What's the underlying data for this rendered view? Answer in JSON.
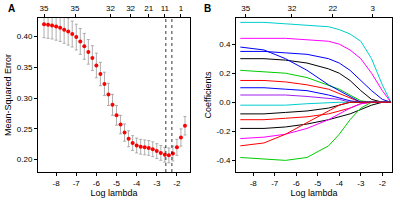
{
  "chart_data": [
    {
      "type": "scatter",
      "title": "A",
      "x_label": "Log lambda",
      "y_label": "Mean-Squared Error",
      "x": [
        -8.6,
        -8.4,
        -8.2,
        -8.0,
        -7.8,
        -7.6,
        -7.4,
        -7.2,
        -7.0,
        -6.8,
        -6.6,
        -6.4,
        -6.2,
        -6.0,
        -5.8,
        -5.6,
        -5.4,
        -5.2,
        -5.0,
        -4.8,
        -4.6,
        -4.4,
        -4.2,
        -4.0,
        -3.8,
        -3.6,
        -3.4,
        -3.2,
        -3.0,
        -2.8,
        -2.6,
        -2.4,
        -2.2,
        -2.0,
        -1.8,
        -1.6
      ],
      "values": [
        0.42,
        0.419,
        0.418,
        0.416,
        0.414,
        0.411,
        0.408,
        0.404,
        0.399,
        0.392,
        0.384,
        0.375,
        0.365,
        0.353,
        0.339,
        0.323,
        0.306,
        0.289,
        0.272,
        0.257,
        0.244,
        0.234,
        0.227,
        0.223,
        0.221,
        0.22,
        0.219,
        0.217,
        0.214,
        0.211,
        0.208,
        0.207,
        0.21,
        0.22,
        0.236,
        0.255
      ],
      "error": [
        0.022,
        0.022,
        0.022,
        0.022,
        0.022,
        0.022,
        0.022,
        0.021,
        0.021,
        0.021,
        0.021,
        0.02,
        0.02,
        0.02,
        0.019,
        0.019,
        0.018,
        0.017,
        0.016,
        0.015,
        0.014,
        0.013,
        0.012,
        0.012,
        0.012,
        0.012,
        0.012,
        0.012,
        0.012,
        0.012,
        0.012,
        0.012,
        0.012,
        0.013,
        0.014,
        0.015
      ],
      "color": "#ff0000",
      "marker": "circle",
      "xlim": [
        -8.9,
        -1.35
      ],
      "xticks": [
        -8,
        -7,
        -6,
        -5,
        -4,
        -3,
        -2
      ],
      "x2ticks": [
        {
          "value": -8.6,
          "label": "35"
        },
        {
          "value": -7.06,
          "label": "35"
        },
        {
          "value": -5.3,
          "label": "32"
        },
        {
          "value": -4.3,
          "label": "32"
        },
        {
          "value": -3.4,
          "label": "21"
        },
        {
          "value": -2.6,
          "label": "11"
        },
        {
          "value": -1.8,
          "label": "1"
        }
      ],
      "ylim": [
        0.18,
        0.43
      ],
      "yticks": [
        {
          "value": 0.2,
          "label": "0.20"
        },
        0.25,
        {
          "value": 0.3,
          "label": "0.30"
        },
        0.35,
        {
          "value": 0.4,
          "label": "0.40"
        }
      ],
      "reference_lines": [
        -2.55,
        -2.25
      ],
      "line_style": "dot"
    },
    {
      "type": "line",
      "title": "B",
      "x_label": "Log lambda",
      "y_label": "Coefficients",
      "x": [
        -8.6,
        -7.5,
        -6.5,
        -5.5,
        -4.5,
        -4.0,
        -3.5,
        -3.0,
        -2.5,
        -2.0,
        -1.6
      ],
      "series": [
        {
          "color": "#00cdcd",
          "values": [
            0.55,
            0.55,
            0.54,
            0.53,
            0.52,
            0.5,
            0.47,
            0.42,
            0.3,
            0.12,
            0.0
          ]
        },
        {
          "color": "#ff00ff",
          "values": [
            0.44,
            0.44,
            0.44,
            0.43,
            0.42,
            0.4,
            0.36,
            0.3,
            0.2,
            0.08,
            0.0
          ]
        },
        {
          "color": "#0000ff",
          "values": [
            0.35,
            0.35,
            0.34,
            0.33,
            0.3,
            0.27,
            0.22,
            0.15,
            0.08,
            0.02,
            0.0
          ]
        },
        {
          "color": "#000000",
          "values": [
            0.3,
            0.3,
            0.29,
            0.27,
            0.23,
            0.2,
            0.15,
            0.08,
            0.02,
            0.0,
            0.0
          ]
        },
        {
          "color": "#00cd00",
          "values": [
            0.22,
            0.21,
            0.2,
            0.17,
            0.12,
            0.09,
            0.05,
            0.01,
            0.0,
            0.0,
            0.0
          ]
        },
        {
          "color": "#ff0000",
          "values": [
            0.15,
            0.15,
            0.14,
            0.12,
            0.09,
            0.06,
            0.03,
            0.0,
            0.0,
            0.0,
            0.0
          ]
        },
        {
          "color": "#0000ff",
          "values": [
            0.1,
            0.1,
            0.09,
            0.08,
            0.05,
            0.03,
            0.01,
            0.0,
            0.0,
            0.0,
            0.0
          ]
        },
        {
          "color": "#a020f0",
          "values": [
            0.05,
            0.05,
            0.05,
            0.04,
            0.03,
            0.02,
            0.0,
            0.0,
            0.0,
            0.0,
            0.0
          ]
        },
        {
          "color": "#00cdcd",
          "values": [
            -0.02,
            -0.02,
            -0.02,
            -0.01,
            0.0,
            0.0,
            0.0,
            0.0,
            0.0,
            0.0,
            0.0
          ]
        },
        {
          "color": "#000000",
          "values": [
            -0.08,
            -0.08,
            -0.07,
            -0.06,
            -0.04,
            -0.02,
            0.0,
            0.0,
            0.0,
            0.0,
            0.0
          ]
        },
        {
          "color": "#ff0000",
          "values": [
            -0.12,
            -0.12,
            -0.11,
            -0.1,
            -0.08,
            -0.06,
            -0.04,
            -0.01,
            0.0,
            0.0,
            0.0
          ]
        },
        {
          "color": "#000000",
          "values": [
            -0.18,
            -0.18,
            -0.17,
            -0.15,
            -0.12,
            -0.1,
            -0.08,
            -0.05,
            -0.02,
            0.0,
            0.0
          ]
        },
        {
          "color": "#ff00ff",
          "values": [
            -0.25,
            -0.24,
            -0.22,
            -0.18,
            -0.12,
            -0.08,
            -0.04,
            -0.01,
            0.0,
            0.0,
            0.0
          ]
        },
        {
          "color": "#00cd00",
          "values": [
            -0.38,
            -0.39,
            -0.4,
            -0.38,
            -0.3,
            -0.22,
            -0.12,
            -0.04,
            0.0,
            0.0,
            0.0
          ]
        },
        {
          "color": "#0000ff",
          "values": [
            0.38,
            0.36,
            0.3,
            0.22,
            0.12,
            0.08,
            0.04,
            0.0,
            0.0,
            0.0,
            0.0
          ]
        },
        {
          "color": "#ff0000",
          "values": [
            -0.3,
            -0.28,
            -0.22,
            -0.14,
            -0.06,
            -0.02,
            0.0,
            0.0,
            0.0,
            0.0,
            0.0
          ]
        }
      ],
      "xlim": [
        -8.8,
        -1.55
      ],
      "xticks": [
        -8,
        -7,
        -6,
        -5,
        -4,
        -3,
        -2
      ],
      "x2ticks": [
        {
          "value": -8.35,
          "label": "35"
        },
        {
          "value": -6.2,
          "label": "32"
        },
        {
          "value": -4.3,
          "label": "22"
        },
        {
          "value": -2.45,
          "label": "3"
        }
      ],
      "ylim": [
        -0.48,
        0.58
      ],
      "yticks": [
        -0.4,
        -0.2,
        {
          "value": 0,
          "label": "0.0"
        },
        0.2,
        0.4
      ]
    }
  ]
}
